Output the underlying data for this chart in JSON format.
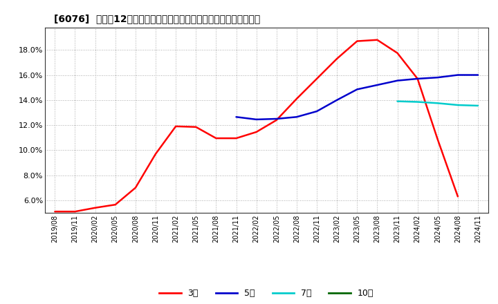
{
  "title": "[6076]  売上高12か月移動合計の対前年同期増減率の標準偏差の推移",
  "background_color": "#ffffff",
  "plot_bg_color": "#ffffff",
  "grid_color": "#aaaaaa",
  "ylim": [
    0.05,
    0.198
  ],
  "yticks": [
    0.06,
    0.08,
    0.1,
    0.12,
    0.14,
    0.16,
    0.18
  ],
  "series": {
    "3year": {
      "color": "#ff0000",
      "label": "3年",
      "x": [
        "2019/08",
        "2019/11",
        "2020/02",
        "2020/05",
        "2020/08",
        "2020/11",
        "2021/02",
        "2021/05",
        "2021/08",
        "2021/11",
        "2022/02",
        "2022/05",
        "2022/08",
        "2022/11",
        "2023/02",
        "2023/05",
        "2023/08",
        "2023/11",
        "2024/02",
        "2024/05",
        "2024/08"
      ],
      "y": [
        0.051,
        0.051,
        0.054,
        0.0565,
        0.07,
        0.097,
        0.119,
        0.1185,
        0.1095,
        0.1095,
        0.1145,
        0.124,
        0.141,
        0.157,
        0.173,
        0.187,
        0.188,
        0.1775,
        0.157,
        0.1085,
        0.063
      ]
    },
    "5year": {
      "color": "#0000cc",
      "label": "5年",
      "x": [
        "2021/11",
        "2022/02",
        "2022/05",
        "2022/08",
        "2022/11",
        "2023/02",
        "2023/05",
        "2023/08",
        "2023/11",
        "2024/02",
        "2024/05",
        "2024/08",
        "2024/11"
      ],
      "y": [
        0.1265,
        0.1245,
        0.125,
        0.1265,
        0.131,
        0.14,
        0.1485,
        0.152,
        0.1555,
        0.157,
        0.158,
        0.16,
        0.16
      ]
    },
    "7year": {
      "color": "#00cccc",
      "label": "7年",
      "x": [
        "2023/11",
        "2024/02",
        "2024/05",
        "2024/08",
        "2024/11"
      ],
      "y": [
        0.139,
        0.1385,
        0.1375,
        0.136,
        0.1355
      ]
    },
    "10year": {
      "color": "#006600",
      "label": "10年",
      "x": [],
      "y": []
    }
  },
  "x_tick_labels": [
    "2019/08",
    "2019/11",
    "2020/02",
    "2020/05",
    "2020/08",
    "2020/11",
    "2021/02",
    "2021/05",
    "2021/08",
    "2021/11",
    "2022/02",
    "2022/05",
    "2022/08",
    "2022/11",
    "2023/02",
    "2023/05",
    "2023/08",
    "2023/11",
    "2024/02",
    "2024/05",
    "2024/08",
    "2024/11"
  ]
}
